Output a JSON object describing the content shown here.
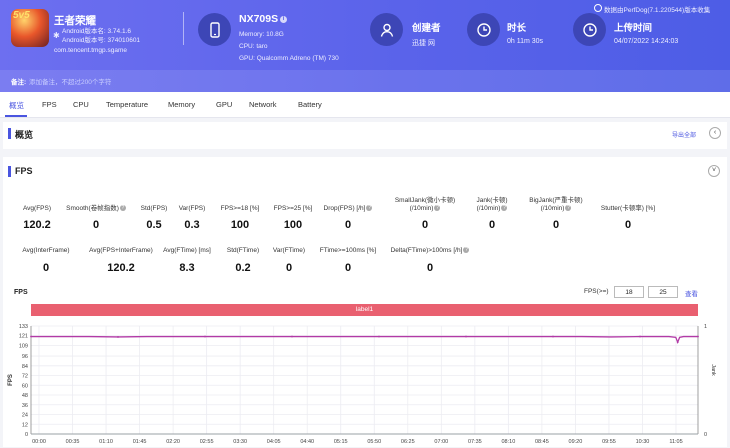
{
  "app": {
    "icon_text": "5v5",
    "name": "王者荣耀",
    "android_version_name": "Android版本名: 3.74.1.6",
    "android_version_code": "Android版本号: 374010601",
    "package": "com.tencent.tmgp.sgame"
  },
  "device": {
    "name": "NX709S",
    "memory": "Memory: 10.8G",
    "cpu": "CPU: taro",
    "gpu": "GPU: Qualcomm Adreno (TM) 730"
  },
  "creator": {
    "label": "创建者",
    "value": "迅捷 网"
  },
  "duration": {
    "label": "时长",
    "value": "0h 11m 30s"
  },
  "upload": {
    "label": "上传时间",
    "value": "04/07/2022 14:24:03"
  },
  "source_note": "数据由PerfDog(7.1.220544)版本收集",
  "note": {
    "label": "备注:",
    "placeholder": "添加备注，不超过200个字符"
  },
  "tabs": [
    "概览",
    "FPS",
    "CPU",
    "Temperature",
    "Memory",
    "GPU",
    "Network",
    "Battery"
  ],
  "overview": {
    "title": "概览",
    "export": "导出全部"
  },
  "fps_section": {
    "title": "FPS",
    "row1": [
      {
        "label": "Avg(FPS)",
        "value": "120.2"
      },
      {
        "label": "Smooth(卷帧指数)",
        "value": "0",
        "help": true
      },
      {
        "label": "Std(FPS)",
        "value": "0.5"
      },
      {
        "label": "Var(FPS)",
        "value": "0.3"
      },
      {
        "label": "FPS>=18 [%]",
        "value": "100"
      },
      {
        "label": "FPS>=25 [%]",
        "value": "100"
      },
      {
        "label": "Drop(FPS) [/h]",
        "value": "0",
        "help": true
      },
      {
        "label": "SmallJank(微小卡顿)\n(/10min)",
        "value": "0",
        "help": true
      },
      {
        "label": "Jank(卡顿)\n(/10min)",
        "value": "0",
        "help": true
      },
      {
        "label": "BigJank(严重卡顿)\n(/10min)",
        "value": "0",
        "help": true
      },
      {
        "label": "Stutter(卡顿率) [%]",
        "value": "0"
      }
    ],
    "row2": [
      {
        "label": "Avg(InterFrame)",
        "value": "0"
      },
      {
        "label": "Avg(FPS+InterFrame)",
        "value": "120.2"
      },
      {
        "label": "Avg(FTime) [ms]",
        "value": "8.3"
      },
      {
        "label": "Std(FTime)",
        "value": "0.2"
      },
      {
        "label": "Var(FTime)",
        "value": "0"
      },
      {
        "label": "FTime>=100ms [%]",
        "value": "0"
      },
      {
        "label": "Delta(FTime)>100ms [/h]",
        "value": "0",
        "help": true
      }
    ]
  },
  "chart_controls": {
    "title": "FPS",
    "filter_label": "FPS(>=)",
    "filter_min": "18",
    "filter_max": "25",
    "apply": "查看",
    "label_bar": "label1"
  },
  "chart_data": {
    "type": "line",
    "ylabel": "FPS",
    "y2label": "Jank",
    "ylim": [
      0,
      133
    ],
    "y2lim": [
      0,
      1
    ],
    "yticks": [
      0,
      12,
      24,
      36,
      48,
      60,
      72,
      84,
      96,
      109,
      121,
      133
    ],
    "y2ticks": [
      0,
      1
    ],
    "grid": true,
    "xlim": [
      0,
      690
    ],
    "xticks": [
      "00:00",
      "00:35",
      "01:10",
      "01:45",
      "02:20",
      "02:55",
      "03:30",
      "04:05",
      "04:40",
      "05:15",
      "05:50",
      "06:25",
      "07:00",
      "07:35",
      "08:10",
      "08:45",
      "09:20",
      "09:55",
      "10:30",
      "11:05"
    ],
    "series": [
      {
        "color": "#b23aa6",
        "x": [
          0,
          30,
          60,
          90,
          120,
          150,
          180,
          210,
          240,
          270,
          300,
          330,
          360,
          390,
          420,
          450,
          480,
          510,
          540,
          570,
          600,
          630,
          660,
          667,
          669,
          671,
          675,
          690
        ],
        "y": [
          120,
          120,
          120,
          119.5,
          120,
          120,
          120,
          120,
          120,
          120,
          120,
          120,
          120,
          120,
          120,
          120,
          120,
          120,
          120,
          120,
          119.5,
          120,
          120,
          119,
          113,
          119,
          120,
          120
        ]
      },
      {
        "color": "#9aa0a6",
        "x": [
          0,
          690
        ],
        "y": [
          0,
          0
        ]
      }
    ]
  }
}
